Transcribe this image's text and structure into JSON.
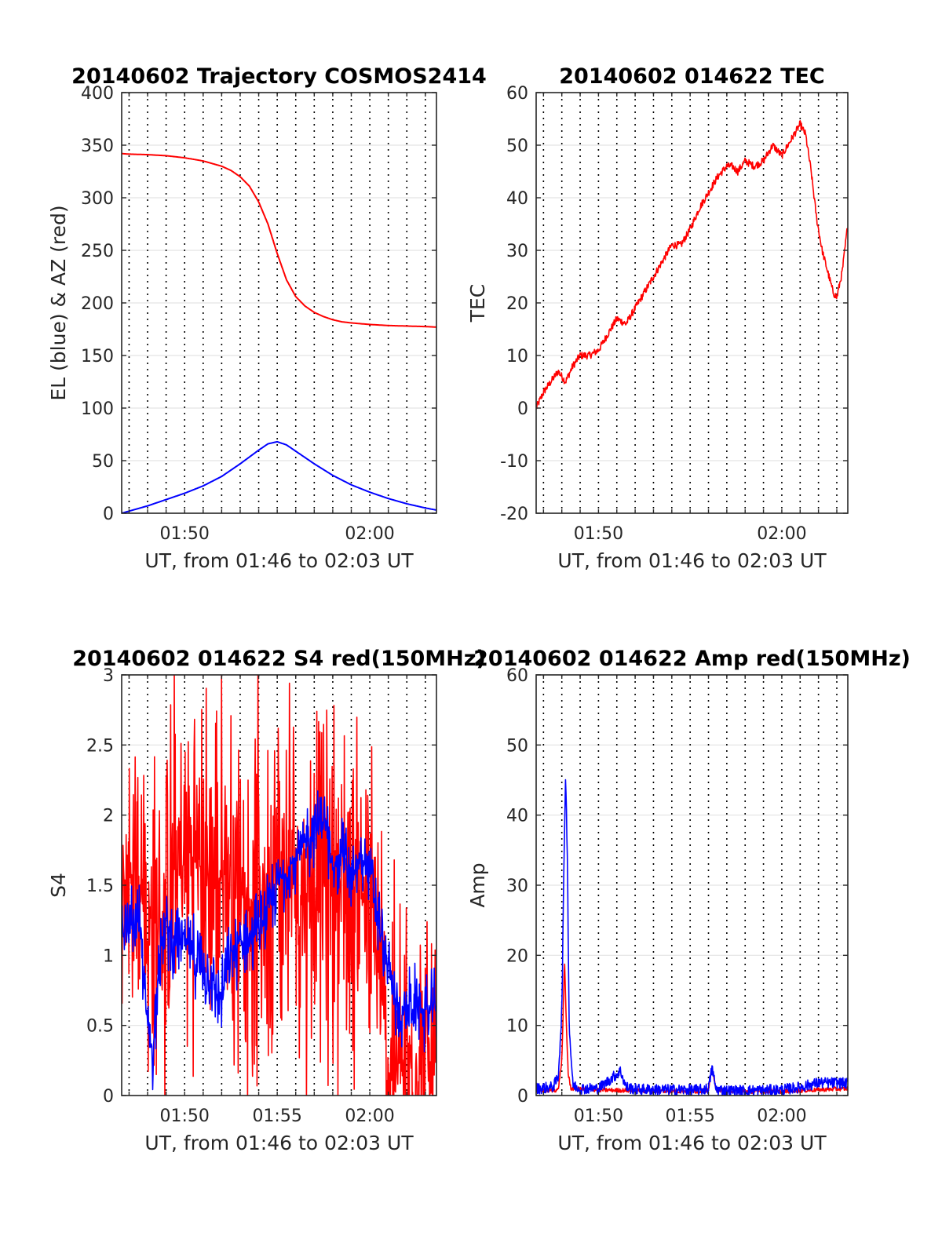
{
  "chart_data": [
    {
      "type": "line",
      "title": "20140602 Trajectory COSMOS2414",
      "xlabel": "UT, from 01:46 to 02:03 UT",
      "ylabel": "EL (blue) & AZ (red)",
      "x_unit": "minutes after 01:00 UT",
      "xlim": [
        46.6,
        63.6
      ],
      "ylim": [
        0,
        400
      ],
      "x_ticks": [
        {
          "value": 50,
          "label": "01:50"
        },
        {
          "value": 60,
          "label": "02:00"
        }
      ],
      "y_ticks": [
        0,
        50,
        100,
        150,
        200,
        250,
        300,
        350,
        400
      ],
      "grid": "vertical dotted per minute, horizontal light",
      "series": [
        {
          "color": "#ff0000",
          "role": "AZ",
          "x": [
            46.6,
            47,
            48,
            49,
            50,
            51,
            52,
            52.5,
            53,
            53.5,
            54,
            54.5,
            55,
            55.5,
            56,
            56.5,
            57,
            57.5,
            58,
            58.5,
            59,
            60,
            61,
            62,
            63,
            63.6
          ],
          "y": [
            342,
            341.5,
            341,
            340,
            338,
            335,
            330,
            326,
            320,
            311,
            296,
            275,
            247,
            222,
            206,
            197,
            191,
            187,
            184,
            182,
            181,
            179.5,
            178.5,
            178,
            177.5,
            177
          ]
        },
        {
          "color": "#0000ff",
          "role": "EL",
          "x": [
            46.6,
            47,
            48,
            49,
            50,
            51,
            52,
            53,
            54,
            54.5,
            55,
            55.5,
            56,
            57,
            58,
            59,
            60,
            61,
            62,
            63,
            63.6
          ],
          "y": [
            0,
            2,
            7,
            13,
            19,
            26,
            35,
            47,
            60,
            66,
            68,
            65,
            59,
            47,
            36,
            27,
            20,
            14,
            9,
            5,
            3
          ]
        }
      ]
    },
    {
      "type": "line",
      "title": "20140602 014622 TEC",
      "xlabel": "UT, from 01:46 to 02:03 UT",
      "ylabel": "TEC",
      "x_unit": "minutes after 01:00 UT",
      "xlim": [
        46.6,
        63.6
      ],
      "ylim": [
        -20,
        60
      ],
      "x_ticks": [
        {
          "value": 50,
          "label": "01:50"
        },
        {
          "value": 60,
          "label": "02:00"
        }
      ],
      "y_ticks": [
        -20,
        -10,
        0,
        10,
        20,
        30,
        40,
        50,
        60
      ],
      "grid": "vertical dotted per minute, horizontal light",
      "series": [
        {
          "color": "#ff0000",
          "noise": 0.7,
          "x": [
            46.6,
            47.0,
            47.4,
            47.8,
            48.2,
            48.6,
            49.0,
            49.5,
            50.0,
            50.5,
            51.0,
            51.5,
            52.0,
            52.5,
            53.0,
            53.5,
            54.0,
            54.5,
            55.0,
            55.5,
            56.0,
            56.5,
            57.0,
            57.3,
            57.6,
            58.0,
            58.5,
            59.0,
            59.5,
            60.0,
            60.5,
            61.0,
            61.3,
            61.6,
            61.9,
            62.2,
            62.5,
            62.8,
            63.0,
            63.3,
            63.6
          ],
          "y": [
            0,
            3,
            5,
            7,
            5,
            8,
            10,
            10,
            11,
            14,
            17,
            16,
            19,
            22,
            25,
            28,
            31,
            31,
            34,
            38,
            41,
            44,
            46,
            46,
            45,
            47,
            46,
            47,
            50,
            48,
            51,
            54,
            52,
            45,
            36,
            30,
            26,
            22,
            21,
            26,
            35
          ]
        }
      ]
    },
    {
      "type": "line",
      "title": "20140602 014622 S4 red(150MHz)",
      "xlabel": "UT, from 01:46 to 02:03 UT",
      "ylabel": "S4",
      "x_unit": "minutes after 01:00 UT",
      "xlim": [
        46.6,
        63.6
      ],
      "ylim": [
        0,
        3
      ],
      "x_ticks": [
        {
          "value": 50,
          "label": "01:50"
        },
        {
          "value": 55,
          "label": "01:55"
        },
        {
          "value": 60,
          "label": "02:00"
        }
      ],
      "y_ticks": [
        0,
        0.5,
        1,
        1.5,
        2,
        2.5,
        3
      ],
      "grid": "vertical dotted per minute, horizontal light",
      "series": [
        {
          "color": "#ff0000",
          "noise": 1.4,
          "x": [
            46.6,
            47.5,
            48.0,
            48.5,
            49.5,
            50.5,
            51.5,
            52.5,
            53.5,
            54.5,
            55.5,
            56.5,
            57.5,
            58.5,
            59.5,
            60.0,
            60.5,
            61.0,
            61.5,
            62.0,
            63.0,
            63.6
          ],
          "y": [
            1.5,
            1.6,
            1.2,
            1.1,
            1.6,
            1.7,
            1.5,
            1.6,
            1.4,
            1.5,
            1.6,
            1.5,
            1.6,
            1.5,
            1.5,
            1.2,
            0.9,
            0.2,
            0.2,
            0.19,
            0.19,
            0.2
          ]
        },
        {
          "color": "#0000ff",
          "noise": 0.28,
          "x": [
            46.6,
            47.0,
            47.5,
            48.0,
            48.3,
            48.6,
            49.0,
            49.5,
            50.0,
            50.5,
            51.0,
            51.5,
            52.0,
            52.5,
            53.0,
            53.5,
            54.0,
            54.5,
            55.0,
            55.5,
            56.0,
            56.5,
            57.0,
            57.5,
            58.0,
            58.5,
            59.0,
            59.5,
            60.0,
            60.5,
            61.0,
            61.5,
            62.0,
            62.5,
            63.0,
            63.6
          ],
          "y": [
            1.1,
            1.2,
            1.3,
            0.5,
            0.3,
            1.0,
            1.2,
            1.1,
            1.1,
            1.0,
            0.9,
            0.8,
            0.7,
            1.0,
            1.1,
            1.1,
            1.2,
            1.3,
            1.5,
            1.6,
            1.7,
            1.8,
            1.9,
            2.0,
            1.6,
            1.8,
            1.5,
            1.7,
            1.6,
            1.2,
            0.9,
            0.6,
            0.6,
            0.65,
            0.6,
            0.62
          ]
        }
      ]
    },
    {
      "type": "line",
      "title": "20140602 014622 Amp red(150MHz)",
      "xlabel": "UT, from 01:46 to 02:03 UT",
      "ylabel": "Amp",
      "x_unit": "minutes after 01:00 UT",
      "xlim": [
        46.6,
        63.6
      ],
      "ylim": [
        0,
        60
      ],
      "x_ticks": [
        {
          "value": 50,
          "label": "01:50"
        },
        {
          "value": 55,
          "label": "01:55"
        },
        {
          "value": 60,
          "label": "02:00"
        }
      ],
      "y_ticks": [
        0,
        10,
        20,
        30,
        40,
        50,
        60
      ],
      "grid": "vertical dotted per minute, horizontal light",
      "series": [
        {
          "color": "#ff0000",
          "noise": 0.3,
          "x": [
            46.6,
            47.8,
            48.0,
            48.15,
            48.25,
            48.35,
            48.5,
            50,
            52,
            55.5,
            56.0,
            56.2,
            56.4,
            58,
            60,
            63.6
          ],
          "y": [
            0.6,
            0.8,
            5,
            19,
            10,
            3,
            1.0,
            0.8,
            0.7,
            0.6,
            0.8,
            4,
            0.8,
            0.6,
            0.6,
            1.0
          ]
        },
        {
          "color": "#0000ff",
          "noise": 0.8,
          "x": [
            46.6,
            47.5,
            47.8,
            48.0,
            48.1,
            48.2,
            48.3,
            48.4,
            48.6,
            49.0,
            50.0,
            50.5,
            51.2,
            51.5,
            52.0,
            54.0,
            55.5,
            56.0,
            56.2,
            56.4,
            57.0,
            58.0,
            60.0,
            61.0,
            62.0,
            63.0,
            63.6
          ],
          "y": [
            1.0,
            1.2,
            2.5,
            12,
            30,
            46,
            35,
            10,
            1.5,
            1.0,
            1.0,
            2.0,
            3.5,
            1.2,
            0.9,
            0.8,
            0.8,
            1.0,
            4.0,
            0.9,
            0.7,
            0.7,
            0.8,
            1.2,
            1.8,
            1.8,
            1.7
          ]
        }
      ]
    }
  ]
}
